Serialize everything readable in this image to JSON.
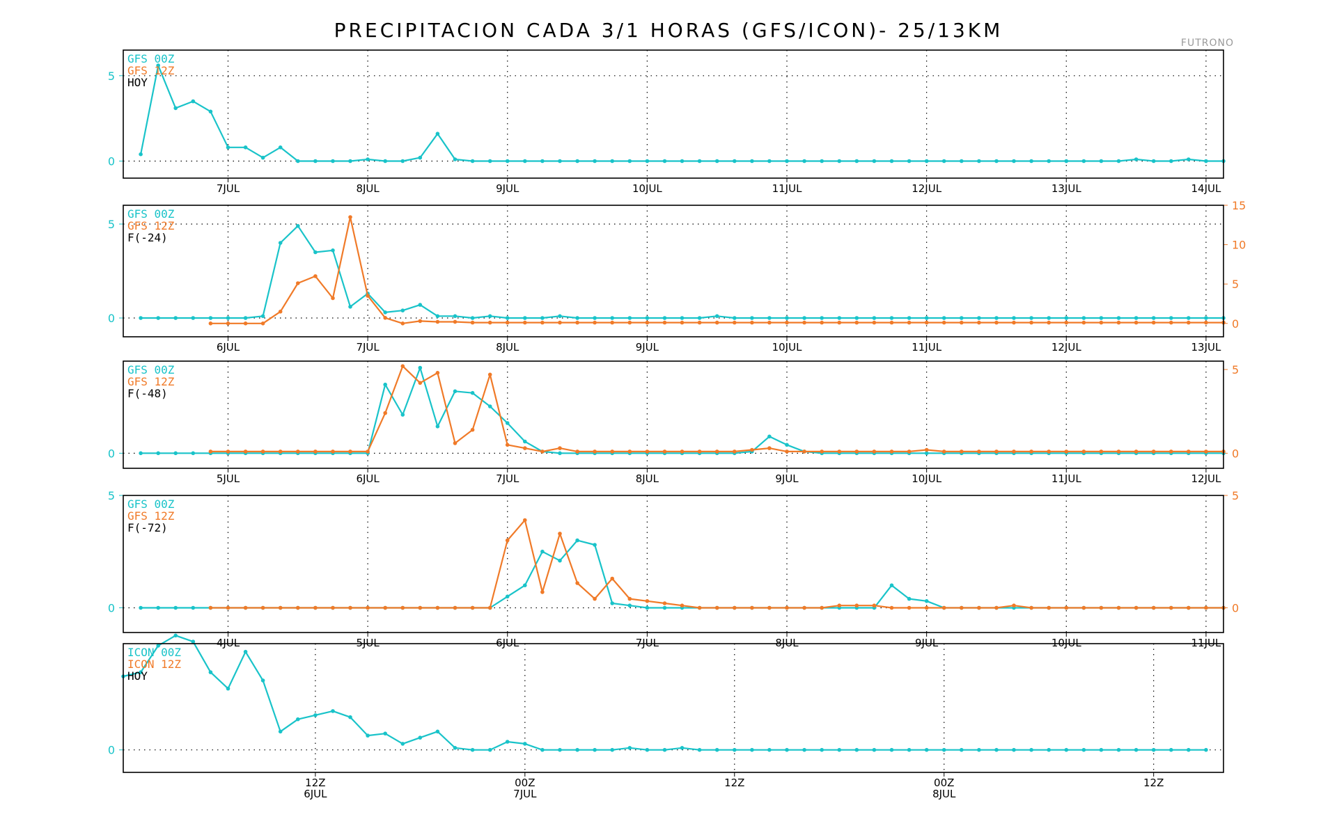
{
  "title": "PRECIPITACION CADA 3/1 HORAS (GFS/ICON)- 25/13KM",
  "location": "FUTRONO",
  "colors": {
    "series_a": "#19c3c9",
    "series_b": "#f07a28",
    "text": "#000000"
  },
  "chart_data": [
    {
      "type": "line",
      "legend": [
        "GFS 00Z",
        "GFS 12Z",
        "HOY"
      ],
      "x_range": [
        0,
        63
      ],
      "x_ticks": [
        {
          "x": 6,
          "label": "7JUL"
        },
        {
          "x": 14,
          "label": "8JUL"
        },
        {
          "x": 22,
          "label": "9JUL"
        },
        {
          "x": 30,
          "label": "10JUL"
        },
        {
          "x": 38,
          "label": "11JUL"
        },
        {
          "x": 46,
          "label": "12JUL"
        },
        {
          "x": 54,
          "label": "13JUL"
        },
        {
          "x": 62,
          "label": "14JUL"
        }
      ],
      "y_left": {
        "range": [
          -1,
          6.5
        ],
        "ticks": [
          0,
          5
        ],
        "dotted": [
          0,
          5
        ]
      },
      "series": [
        {
          "name": "GFS 00Z",
          "axis": "left",
          "x0": 1,
          "values": [
            0.4,
            5.6,
            3.1,
            3.5,
            2.9,
            0.8,
            0.8,
            0.2,
            0.8,
            0,
            0,
            0,
            0,
            0.1,
            0,
            0,
            0.2,
            1.6,
            0.1,
            0,
            0,
            0,
            0,
            0,
            0,
            0,
            0,
            0,
            0,
            0,
            0,
            0,
            0,
            0,
            0,
            0,
            0,
            0,
            0,
            0,
            0,
            0,
            0,
            0,
            0,
            0,
            0,
            0,
            0,
            0,
            0,
            0,
            0,
            0,
            0,
            0,
            0,
            0.1,
            0,
            0,
            0.1,
            0,
            0
          ]
        }
      ]
    },
    {
      "type": "line",
      "legend": [
        "GFS 00Z",
        "GFS 12Z",
        "F(-24)"
      ],
      "x_range": [
        0,
        63
      ],
      "x_ticks": [
        {
          "x": 6,
          "label": "6JUL"
        },
        {
          "x": 14,
          "label": "7JUL"
        },
        {
          "x": 22,
          "label": "8JUL"
        },
        {
          "x": 30,
          "label": "9JUL"
        },
        {
          "x": 38,
          "label": "10JUL"
        },
        {
          "x": 46,
          "label": "11JUL"
        },
        {
          "x": 54,
          "label": "12JUL"
        },
        {
          "x": 62,
          "label": "13JUL"
        }
      ],
      "y_left": {
        "range": [
          -1,
          6
        ],
        "ticks": [
          0,
          5
        ],
        "dotted": [
          0,
          5
        ]
      },
      "y_right": {
        "range": [
          -1.7,
          15
        ],
        "ticks": [
          0,
          5,
          10,
          15
        ]
      },
      "series": [
        {
          "name": "GFS 00Z",
          "axis": "left",
          "x0": 1,
          "values": [
            0,
            0,
            0,
            0,
            0,
            0,
            0,
            0.1,
            4,
            4.9,
            3.5,
            3.6,
            0.6,
            1.3,
            0.3,
            0.4,
            0.7,
            0.1,
            0.1,
            0,
            0.1,
            0,
            0,
            0,
            0.1,
            0,
            0,
            0,
            0,
            0,
            0,
            0,
            0,
            0.1,
            0,
            0,
            0,
            0,
            0,
            0,
            0,
            0,
            0,
            0,
            0,
            0,
            0,
            0,
            0,
            0,
            0,
            0,
            0,
            0,
            0,
            0,
            0,
            0,
            0,
            0,
            0,
            0,
            0
          ]
        },
        {
          "name": "GFS 12Z",
          "axis": "right",
          "x0": 5,
          "values": [
            0,
            0,
            0,
            0,
            1.5,
            5.1,
            6,
            3.2,
            13.5,
            3.5,
            0.7,
            0,
            0.3,
            0.2,
            0.2,
            0.1,
            0.1,
            0.1,
            0.1,
            0.1,
            0.1,
            0.1,
            0.1,
            0.1,
            0.1,
            0.1,
            0.1,
            0.1,
            0.1,
            0.1,
            0.1,
            0.1,
            0.1,
            0.1,
            0.1,
            0.1,
            0.1,
            0.1,
            0.1,
            0.1,
            0.1,
            0.1,
            0.1,
            0.1,
            0.1,
            0.1,
            0.1,
            0.1,
            0.1,
            0.1,
            0.1,
            0.1,
            0.1,
            0.1,
            0.1,
            0.1,
            0.1,
            0.1,
            0.1
          ]
        }
      ]
    },
    {
      "type": "line",
      "legend": [
        "GFS 00Z",
        "GFS 12Z",
        "F(-48)"
      ],
      "x_range": [
        0,
        63
      ],
      "x_ticks": [
        {
          "x": 6,
          "label": "5JUL"
        },
        {
          "x": 14,
          "label": "6JUL"
        },
        {
          "x": 22,
          "label": "7JUL"
        },
        {
          "x": 30,
          "label": "8JUL"
        },
        {
          "x": 38,
          "label": "9JUL"
        },
        {
          "x": 46,
          "label": "10JUL"
        },
        {
          "x": 54,
          "label": "11JUL"
        },
        {
          "x": 62,
          "label": "12JUL"
        }
      ],
      "y_left": {
        "range": [
          -0.9,
          5.5
        ],
        "ticks": [
          0
        ],
        "dotted": [
          0
        ]
      },
      "y_right": {
        "range": [
          -0.9,
          5.5
        ],
        "ticks": [
          0,
          5
        ]
      },
      "series": [
        {
          "name": "GFS 00Z",
          "axis": "left",
          "x0": 1,
          "values": [
            0,
            0,
            0,
            0,
            0,
            0,
            0,
            0,
            0,
            0,
            0,
            0,
            0,
            0,
            4.1,
            2.3,
            5.1,
            1.6,
            3.7,
            3.6,
            2.8,
            1.8,
            0.7,
            0.1,
            0,
            0,
            0,
            0,
            0,
            0,
            0,
            0,
            0,
            0,
            0,
            0.1,
            1,
            0.5,
            0.1,
            0,
            0,
            0,
            0,
            0,
            0,
            0,
            0,
            0,
            0,
            0,
            0,
            0,
            0,
            0,
            0,
            0,
            0,
            0,
            0,
            0,
            0,
            0,
            0
          ]
        },
        {
          "name": "GFS 12Z",
          "axis": "right",
          "x0": 5,
          "values": [
            0.1,
            0.1,
            0.1,
            0.1,
            0.1,
            0.1,
            0.1,
            0.1,
            0.1,
            0.1,
            2.4,
            5.2,
            4.2,
            4.8,
            0.6,
            1.4,
            4.7,
            0.5,
            0.3,
            0.1,
            0.3,
            0.1,
            0.1,
            0.1,
            0.1,
            0.1,
            0.1,
            0.1,
            0.1,
            0.1,
            0.1,
            0.2,
            0.3,
            0.1,
            0.1,
            0.1,
            0.1,
            0.1,
            0.1,
            0.1,
            0.1,
            0.2,
            0.1,
            0.1,
            0.1,
            0.1,
            0.1,
            0.1,
            0.1,
            0.1,
            0.1,
            0.1,
            0.1,
            0.1,
            0.1,
            0.1,
            0.1,
            0.1,
            0.1
          ]
        }
      ]
    },
    {
      "type": "line",
      "legend": [
        "GFS 00Z",
        "GFS 12Z",
        "F(-72)"
      ],
      "x_range": [
        0,
        63
      ],
      "x_ticks": [
        {
          "x": 6,
          "label": "4JUL"
        },
        {
          "x": 14,
          "label": "5JUL"
        },
        {
          "x": 22,
          "label": "6JUL"
        },
        {
          "x": 30,
          "label": "7JUL"
        },
        {
          "x": 38,
          "label": "8JUL"
        },
        {
          "x": 46,
          "label": "9JUL"
        },
        {
          "x": 54,
          "label": "10JUL"
        },
        {
          "x": 62,
          "label": "11JUL"
        }
      ],
      "y_left": {
        "range": [
          -1.1,
          5
        ],
        "ticks": [
          0,
          5
        ],
        "dotted": [
          0
        ]
      },
      "y_right": {
        "range": [
          -1.1,
          5
        ],
        "ticks": [
          0,
          5
        ]
      },
      "series": [
        {
          "name": "GFS 00Z",
          "axis": "left",
          "x0": 1,
          "values": [
            0,
            0,
            0,
            0,
            0,
            0,
            0,
            0,
            0,
            0,
            0,
            0,
            0,
            0,
            0,
            0,
            0,
            0,
            0,
            0,
            0,
            0.5,
            1,
            2.5,
            2.1,
            3,
            2.8,
            0.2,
            0.1,
            0,
            0,
            0,
            0,
            0,
            0,
            0,
            0,
            0,
            0,
            0,
            0,
            0,
            0,
            1,
            0.4,
            0.3,
            0,
            0,
            0,
            0,
            0,
            0,
            0,
            0,
            0,
            0,
            0,
            0,
            0,
            0,
            0,
            0,
            0
          ]
        },
        {
          "name": "GFS 12Z",
          "axis": "right",
          "x0": 5,
          "values": [
            0,
            0,
            0,
            0,
            0,
            0,
            0,
            0,
            0,
            0,
            0,
            0,
            0,
            0,
            0,
            0,
            0,
            3.0,
            3.9,
            0.7,
            3.3,
            1.1,
            0.4,
            1.3,
            0.4,
            0.3,
            0.2,
            0.1,
            0,
            0,
            0,
            0,
            0,
            0,
            0,
            0,
            0.1,
            0.1,
            0.1,
            0,
            0,
            0,
            0,
            0,
            0,
            0,
            0.1,
            0,
            0,
            0,
            0,
            0,
            0,
            0,
            0,
            0,
            0,
            0,
            0
          ]
        }
      ]
    },
    {
      "type": "line",
      "legend": [
        "ICON 00Z",
        "ICON 12Z",
        "HOY"
      ],
      "x_range": [
        0,
        63
      ],
      "x_ticks": [
        {
          "x": 11,
          "label": "12Z"
        },
        {
          "x": 23,
          "label": "00Z",
          "sub": "7JUL"
        },
        {
          "x": 35,
          "label": "12Z"
        },
        {
          "x": 47,
          "label": "00Z",
          "sub": "8JUL"
        },
        {
          "x": 59,
          "label": "12Z"
        }
      ],
      "x_extra_labels": [
        {
          "x": 11,
          "label": "6JUL"
        }
      ],
      "y_left": {
        "range": [
          -1.1,
          5.2
        ],
        "ticks": [
          0
        ],
        "dotted": [
          0
        ]
      },
      "series": [
        {
          "name": "ICON 00Z",
          "axis": "left",
          "x0": 0,
          "values": [
            3.6,
            3.8,
            5.1,
            5.6,
            5.3,
            3.8,
            3.0,
            4.8,
            3.4,
            0.9,
            1.5,
            1.7,
            1.9,
            1.6,
            0.7,
            0.8,
            0.3,
            0.6,
            0.9,
            0.1,
            0,
            0,
            0.4,
            0.3,
            0,
            0,
            0,
            0,
            0,
            0.1,
            0,
            0,
            0.1,
            0,
            0,
            0,
            0,
            0,
            0,
            0,
            0,
            0,
            0,
            0,
            0,
            0,
            0,
            0,
            0,
            0,
            0,
            0,
            0,
            0,
            0,
            0,
            0,
            0,
            0,
            0,
            0,
            0,
            0
          ]
        }
      ]
    }
  ]
}
